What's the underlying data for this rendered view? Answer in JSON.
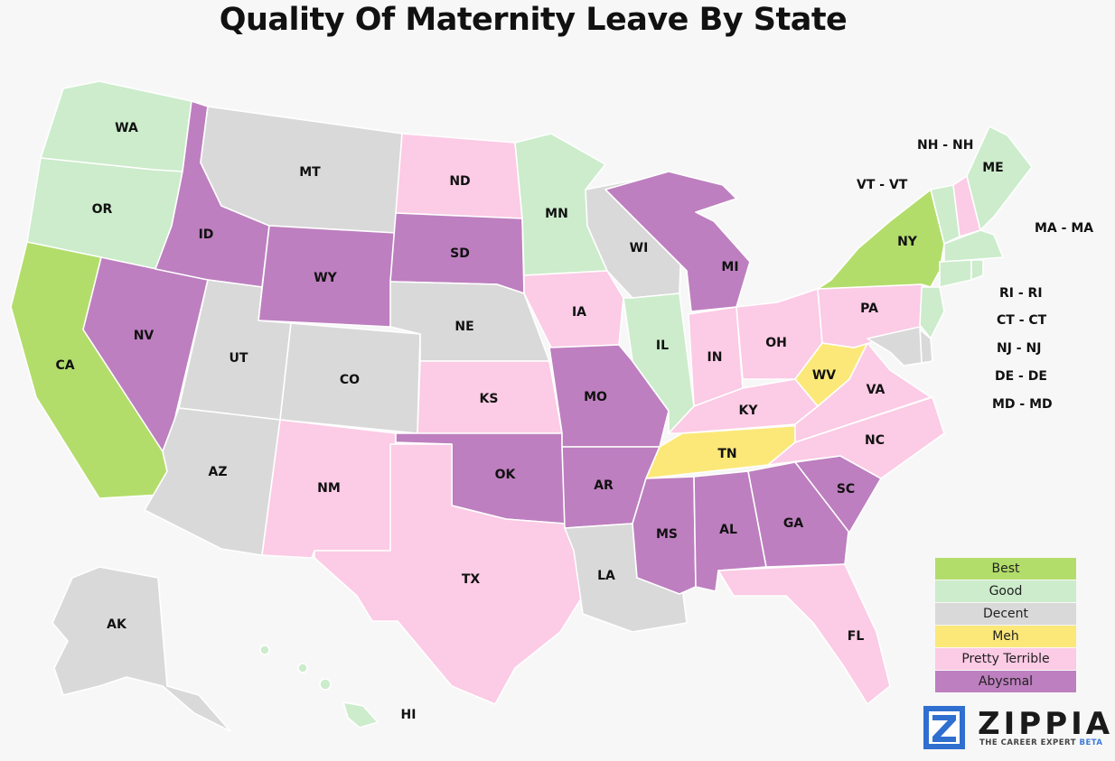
{
  "title": "Quality Of Maternity Leave By State",
  "colors": {
    "best": "#b3dd6b",
    "good": "#cceccb",
    "decent": "#d9d9d9",
    "meh": "#fbe878",
    "pretty_terrible": "#fccbe5",
    "abysmal": "#bd7fbf"
  },
  "legend": [
    {
      "label": "Best",
      "category": "best"
    },
    {
      "label": "Good",
      "category": "good"
    },
    {
      "label": "Decent",
      "category": "decent"
    },
    {
      "label": "Meh",
      "category": "meh"
    },
    {
      "label": "Pretty Terrible",
      "category": "pretty_terrible"
    },
    {
      "label": "Abysmal",
      "category": "abysmal"
    }
  ],
  "states": [
    {
      "abbr": "WA",
      "category": "good"
    },
    {
      "abbr": "OR",
      "category": "good"
    },
    {
      "abbr": "CA",
      "category": "best"
    },
    {
      "abbr": "NV",
      "category": "abysmal"
    },
    {
      "abbr": "ID",
      "category": "abysmal"
    },
    {
      "abbr": "MT",
      "category": "decent"
    },
    {
      "abbr": "WY",
      "category": "abysmal"
    },
    {
      "abbr": "UT",
      "category": "decent"
    },
    {
      "abbr": "AZ",
      "category": "decent"
    },
    {
      "abbr": "CO",
      "category": "decent"
    },
    {
      "abbr": "NM",
      "category": "pretty_terrible"
    },
    {
      "abbr": "ND",
      "category": "pretty_terrible"
    },
    {
      "abbr": "SD",
      "category": "abysmal"
    },
    {
      "abbr": "NE",
      "category": "decent"
    },
    {
      "abbr": "KS",
      "category": "pretty_terrible"
    },
    {
      "abbr": "OK",
      "category": "abysmal"
    },
    {
      "abbr": "TX",
      "category": "pretty_terrible"
    },
    {
      "abbr": "MN",
      "category": "good"
    },
    {
      "abbr": "IA",
      "category": "pretty_terrible"
    },
    {
      "abbr": "MO",
      "category": "abysmal"
    },
    {
      "abbr": "AR",
      "category": "abysmal"
    },
    {
      "abbr": "LA",
      "category": "decent"
    },
    {
      "abbr": "WI",
      "category": "decent"
    },
    {
      "abbr": "IL",
      "category": "good"
    },
    {
      "abbr": "MI",
      "category": "abysmal"
    },
    {
      "abbr": "IN",
      "category": "pretty_terrible"
    },
    {
      "abbr": "OH",
      "category": "pretty_terrible"
    },
    {
      "abbr": "KY",
      "category": "pretty_terrible"
    },
    {
      "abbr": "TN",
      "category": "meh"
    },
    {
      "abbr": "MS",
      "category": "abysmal"
    },
    {
      "abbr": "AL",
      "category": "abysmal"
    },
    {
      "abbr": "GA",
      "category": "abysmal"
    },
    {
      "abbr": "FL",
      "category": "pretty_terrible"
    },
    {
      "abbr": "SC",
      "category": "abysmal"
    },
    {
      "abbr": "NC",
      "category": "pretty_terrible"
    },
    {
      "abbr": "VA",
      "category": "pretty_terrible"
    },
    {
      "abbr": "WV",
      "category": "meh"
    },
    {
      "abbr": "PA",
      "category": "pretty_terrible"
    },
    {
      "abbr": "NY",
      "category": "best"
    },
    {
      "abbr": "ME",
      "category": "good"
    },
    {
      "abbr": "AK",
      "category": "decent"
    },
    {
      "abbr": "HI",
      "category": "good"
    },
    {
      "abbr": "NH",
      "category": "pretty_terrible"
    },
    {
      "abbr": "VT",
      "category": "good"
    },
    {
      "abbr": "MA",
      "category": "good"
    },
    {
      "abbr": "RI",
      "category": "good"
    },
    {
      "abbr": "CT",
      "category": "good"
    },
    {
      "abbr": "NJ",
      "category": "good"
    },
    {
      "abbr": "DE",
      "category": "decent"
    },
    {
      "abbr": "MD",
      "category": "decent"
    }
  ],
  "callouts": [
    "NH - NH",
    "VT - VT",
    "MA - MA",
    "RI - RI",
    "CT - CT",
    "NJ - NJ",
    "DE - DE",
    "MD - MD"
  ],
  "logo": {
    "name": "ZIPPIA",
    "tagline": "THE CAREER EXPERT",
    "badge": "BETA",
    "icon": "zippia-z-logo-icon"
  }
}
